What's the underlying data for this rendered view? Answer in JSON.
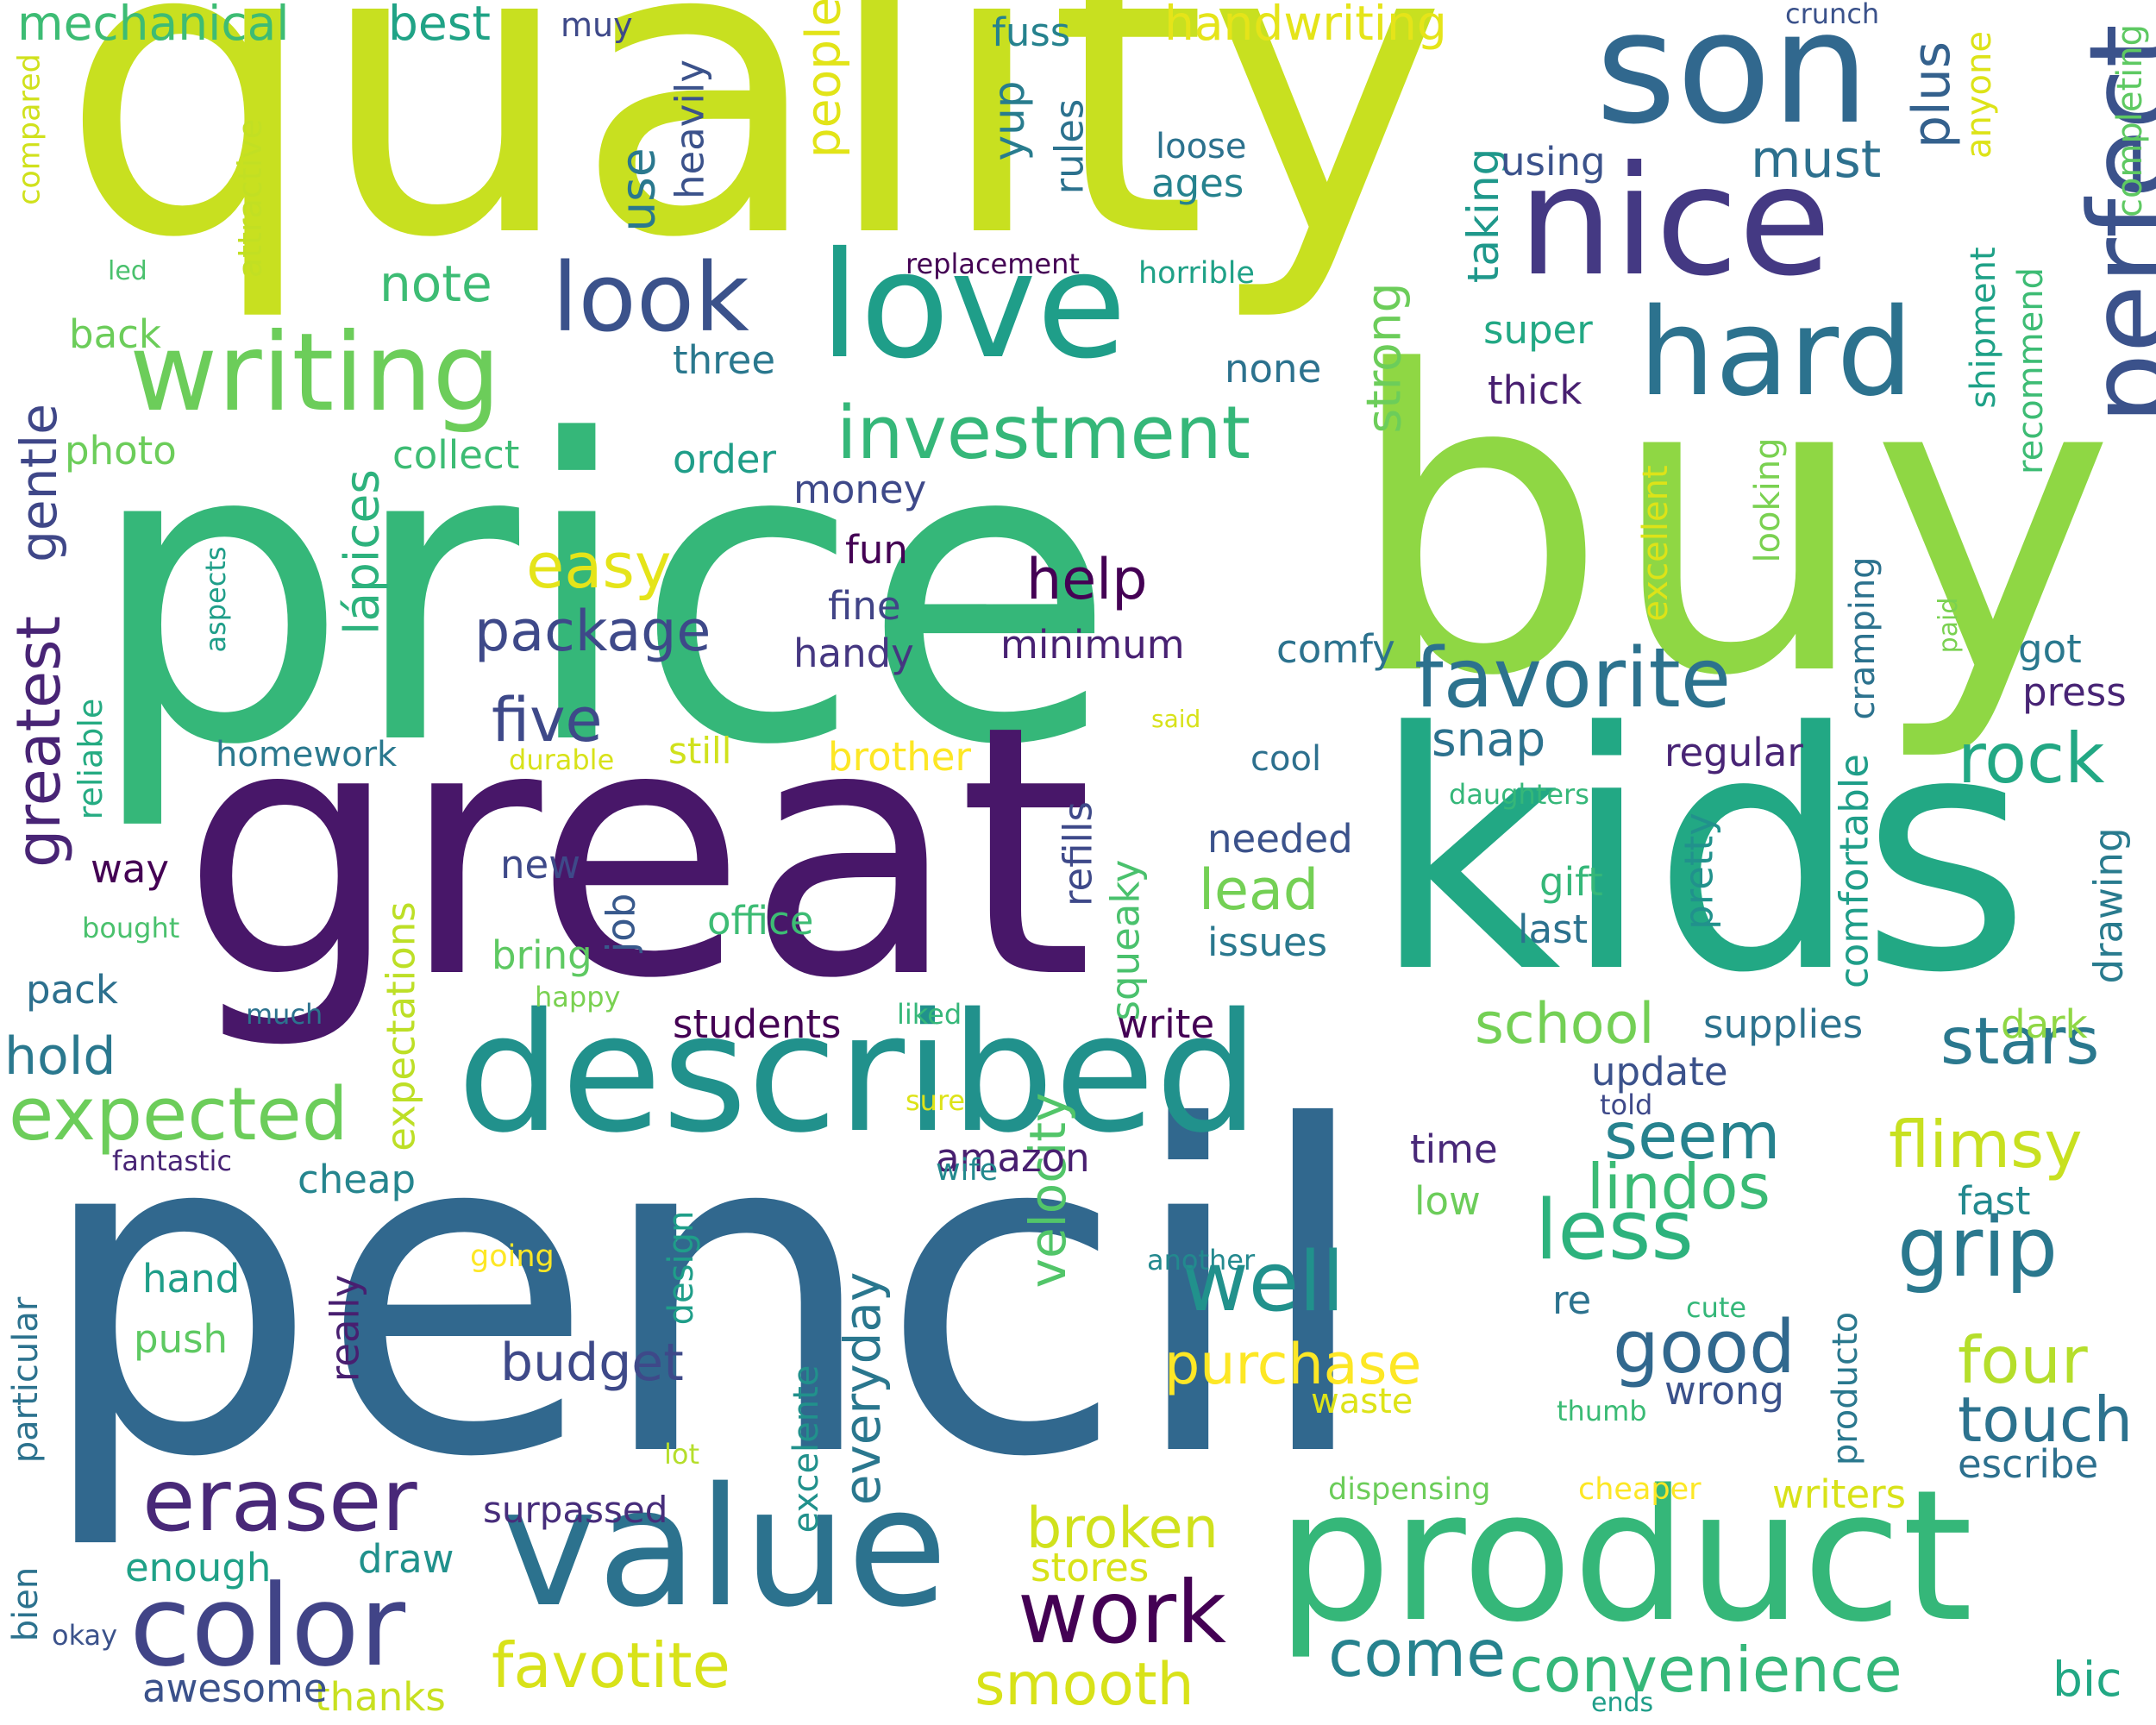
{
  "words": [
    {
      "text": "pencil",
      "color": "#31688e"
    },
    {
      "text": "quality",
      "color": "#c8e020"
    },
    {
      "text": "price",
      "color": "#35b779"
    },
    {
      "text": "buy",
      "color": "#8fd744"
    },
    {
      "text": "great",
      "color": "#481769"
    },
    {
      "text": "kids",
      "color": "#22a884"
    },
    {
      "text": "product",
      "color": "#35b779"
    },
    {
      "text": "described",
      "color": "#21918c"
    },
    {
      "text": "value",
      "color": "#2c728e"
    },
    {
      "text": "son",
      "color": "#31688e"
    },
    {
      "text": "nice",
      "color": "#443983"
    },
    {
      "text": "love",
      "color": "#1f9e89"
    },
    {
      "text": "hard",
      "color": "#2c728e"
    },
    {
      "text": "perfect",
      "color": "#3b528b"
    },
    {
      "text": "writing",
      "color": "#6ccd5a"
    },
    {
      "text": "look",
      "color": "#3b528b"
    },
    {
      "text": "color",
      "color": "#414487"
    },
    {
      "text": "eraser",
      "color": "#482878"
    },
    {
      "text": "work",
      "color": "#440154"
    },
    {
      "text": "favorite",
      "color": "#2c728e"
    },
    {
      "text": "investment",
      "color": "#35b779"
    },
    {
      "text": "expected",
      "color": "#6ccd5a"
    },
    {
      "text": "well",
      "color": "#21918c"
    },
    {
      "text": "less",
      "color": "#2db27d"
    },
    {
      "text": "grip",
      "color": "#2a788e"
    },
    {
      "text": "rock",
      "color": "#22a884"
    },
    {
      "text": "stars",
      "color": "#2a788e"
    },
    {
      "text": "flimsy",
      "color": "#c8e020"
    },
    {
      "text": "seem",
      "color": "#26828e"
    },
    {
      "text": "convenience",
      "color": "#35b779"
    },
    {
      "text": "favotite",
      "color": "#d8e219"
    },
    {
      "text": "smooth",
      "color": "#d8e219"
    },
    {
      "text": "come",
      "color": "#26828e"
    },
    {
      "text": "purchase",
      "color": "#fde725"
    },
    {
      "text": "good",
      "color": "#31688e"
    },
    {
      "text": "four",
      "color": "#b5de2b"
    },
    {
      "text": "touch",
      "color": "#2c728e"
    },
    {
      "text": "lindos",
      "color": "#3bbb75"
    },
    {
      "text": "school",
      "color": "#74d055"
    },
    {
      "text": "lead",
      "color": "#74d055"
    },
    {
      "text": "five",
      "color": "#3e4989"
    },
    {
      "text": "package",
      "color": "#3e4989"
    },
    {
      "text": "easy",
      "color": "#e5e419"
    },
    {
      "text": "help",
      "color": "#440154"
    },
    {
      "text": "greatest",
      "color": "#482475"
    },
    {
      "text": "gentle",
      "color": "#3f4788"
    },
    {
      "text": "mechanical",
      "color": "#3dbc74"
    },
    {
      "text": "best",
      "color": "#20a386"
    },
    {
      "text": "handwriting",
      "color": "#e5e419"
    },
    {
      "text": "broken",
      "color": "#d0e11c"
    },
    {
      "text": "budget",
      "color": "#3e4989"
    },
    {
      "text": "velocity",
      "color": "#52c569"
    },
    {
      "text": "everyday",
      "color": "#2a778e"
    },
    {
      "text": "people",
      "color": "#e2e418"
    },
    {
      "text": "use",
      "color": "#2a788e"
    },
    {
      "text": "note",
      "color": "#3dbc74"
    },
    {
      "text": "plus",
      "color": "#34618d"
    },
    {
      "text": "must",
      "color": "#2d708e"
    },
    {
      "text": "strong",
      "color": "#6ccd5a"
    },
    {
      "text": "lápices",
      "color": "#2db27d"
    },
    {
      "text": "hold",
      "color": "#2a788e"
    },
    {
      "text": "yup",
      "color": "#287c8e"
    },
    {
      "text": "taking",
      "color": "#1f988b"
    },
    {
      "text": "surpassed",
      "color": "#472d7b"
    },
    {
      "text": "favorite",
      "color": "#2c728e"
    },
    {
      "text": "snap",
      "color": "#2c728e"
    },
    {
      "text": "students",
      "color": "#440154"
    },
    {
      "text": "office",
      "color": "#3dbc74"
    },
    {
      "text": "bring",
      "color": "#5ec962"
    },
    {
      "text": "supplies",
      "color": "#2c728e"
    },
    {
      "text": "amazon",
      "color": "#481f70"
    },
    {
      "text": "cheap",
      "color": "#25858e"
    },
    {
      "text": "stores",
      "color": "#d8e219"
    },
    {
      "text": "writers",
      "color": "#d8e219"
    },
    {
      "text": "escribe",
      "color": "#2d708e"
    },
    {
      "text": "bic",
      "color": "#22a884"
    },
    {
      "text": "thanks",
      "color": "#c8e020"
    },
    {
      "text": "awesome",
      "color": "#3b528b"
    },
    {
      "text": "enough",
      "color": "#1fa187"
    },
    {
      "text": "draw",
      "color": "#21918c"
    },
    {
      "text": "fast",
      "color": "#23898e"
    },
    {
      "text": "update",
      "color": "#3b528b"
    },
    {
      "text": "time",
      "color": "#482878"
    },
    {
      "text": "low",
      "color": "#6ccd5a"
    },
    {
      "text": "write",
      "color": "#440154"
    },
    {
      "text": "pretty",
      "color": "#21918c"
    },
    {
      "text": "squeaky",
      "color": "#4ac16d"
    },
    {
      "text": "refills",
      "color": "#3e4989"
    },
    {
      "text": "job",
      "color": "#38598c"
    },
    {
      "text": "regular",
      "color": "#482475"
    },
    {
      "text": "comfortable",
      "color": "#1f9e89"
    },
    {
      "text": "drawing",
      "color": "#297b8e"
    },
    {
      "text": "dark",
      "color": "#8fd744"
    },
    {
      "text": "comfy",
      "color": "#2c728e"
    },
    {
      "text": "minimum",
      "color": "#482173"
    },
    {
      "text": "handy",
      "color": "#453781"
    },
    {
      "text": "fine",
      "color": "#414487"
    },
    {
      "text": "fun",
      "color": "#440154"
    },
    {
      "text": "money",
      "color": "#3e4989"
    },
    {
      "text": "order",
      "color": "#1f9e89"
    },
    {
      "text": "collect",
      "color": "#3dbc74"
    },
    {
      "text": "photo",
      "color": "#6ccd5a"
    },
    {
      "text": "back",
      "color": "#6ccd5a"
    },
    {
      "text": "three",
      "color": "#2a788e"
    },
    {
      "text": "none",
      "color": "#2c728e"
    },
    {
      "text": "super",
      "color": "#22a884"
    },
    {
      "text": "thick",
      "color": "#481f70"
    },
    {
      "text": "using",
      "color": "#3b528b"
    },
    {
      "text": "loose",
      "color": "#2c728e"
    },
    {
      "text": "ages",
      "color": "#26828e"
    },
    {
      "text": "rules",
      "color": "#2c728e"
    },
    {
      "text": "heavily",
      "color": "#3b528b"
    },
    {
      "text": "muy",
      "color": "#3e4989"
    },
    {
      "text": "fuss",
      "color": "#26828e"
    },
    {
      "text": "crunch",
      "color": "#3b528b"
    },
    {
      "text": "anyone",
      "color": "#dde318"
    },
    {
      "text": "completing",
      "color": "#5ec962"
    },
    {
      "text": "shipment",
      "color": "#1fa187"
    },
    {
      "text": "recommend",
      "color": "#3dbc74"
    },
    {
      "text": "looking",
      "color": "#7ad151"
    },
    {
      "text": "excellent",
      "color": "#dde318"
    },
    {
      "text": "cramping",
      "color": "#2c728e"
    },
    {
      "text": "paid",
      "color": "#7ad151"
    },
    {
      "text": "got",
      "color": "#2a788e"
    },
    {
      "text": "press",
      "color": "#482475"
    },
    {
      "text": "compared",
      "color": "#d0e11c"
    },
    {
      "text": "led",
      "color": "#4ac16d"
    },
    {
      "text": "attractive",
      "color": "#c2df23"
    },
    {
      "text": "replacement",
      "color": "#440154"
    },
    {
      "text": "horrible",
      "color": "#1fa187"
    },
    {
      "text": "aspects",
      "color": "#1f9e89"
    },
    {
      "text": "reliable",
      "color": "#25ab82"
    },
    {
      "text": "homework",
      "color": "#2a788e"
    },
    {
      "text": "durable",
      "color": "#d8e219"
    },
    {
      "text": "said",
      "color": "#d8e219"
    },
    {
      "text": "still",
      "color": "#d0e11c"
    },
    {
      "text": "brother",
      "color": "#fde725"
    },
    {
      "text": "cool",
      "color": "#2d708e"
    },
    {
      "text": "daughters",
      "color": "#35b779"
    },
    {
      "text": "needed",
      "color": "#3b528b"
    },
    {
      "text": "gift",
      "color": "#35b779"
    },
    {
      "text": "last",
      "color": "#2c728e"
    },
    {
      "text": "issues",
      "color": "#2a788e"
    },
    {
      "text": "new",
      "color": "#3e4989"
    },
    {
      "text": "way",
      "color": "#440154"
    },
    {
      "text": "bought",
      "color": "#4ac16d"
    },
    {
      "text": "pack",
      "color": "#2d708e"
    },
    {
      "text": "happy",
      "color": "#7ad151"
    },
    {
      "text": "much",
      "color": "#2c728e"
    },
    {
      "text": "liked",
      "color": "#35b779"
    },
    {
      "text": "expectations",
      "color": "#bddf26"
    },
    {
      "text": "sure",
      "color": "#dde318"
    },
    {
      "text": "fantastic",
      "color": "#482475"
    },
    {
      "text": "wife",
      "color": "#23898e"
    },
    {
      "text": "told",
      "color": "#3e4989"
    },
    {
      "text": "another",
      "color": "#23898e"
    },
    {
      "text": "cute",
      "color": "#35b779"
    },
    {
      "text": "re",
      "color": "#2c728e"
    },
    {
      "text": "producto",
      "color": "#2a788e"
    },
    {
      "text": "thumb",
      "color": "#3bbb75"
    },
    {
      "text": "wrong",
      "color": "#3b528b"
    },
    {
      "text": "waste",
      "color": "#dde318"
    },
    {
      "text": "design",
      "color": "#1f9e89"
    },
    {
      "text": "really",
      "color": "#481f70"
    },
    {
      "text": "excelente",
      "color": "#21918c"
    },
    {
      "text": "going",
      "color": "#fde725"
    },
    {
      "text": "hand",
      "color": "#1f9e89"
    },
    {
      "text": "push",
      "color": "#5ec962"
    },
    {
      "text": "particular",
      "color": "#2c728e"
    },
    {
      "text": "bien",
      "color": "#2c728e"
    },
    {
      "text": "okay",
      "color": "#3b528b"
    },
    {
      "text": "lot",
      "color": "#b5de2b"
    },
    {
      "text": "dispensing",
      "color": "#6ccd5a"
    },
    {
      "text": "cheaper",
      "color": "#fde725"
    },
    {
      "text": "ends",
      "color": "#1f9e89"
    }
  ]
}
